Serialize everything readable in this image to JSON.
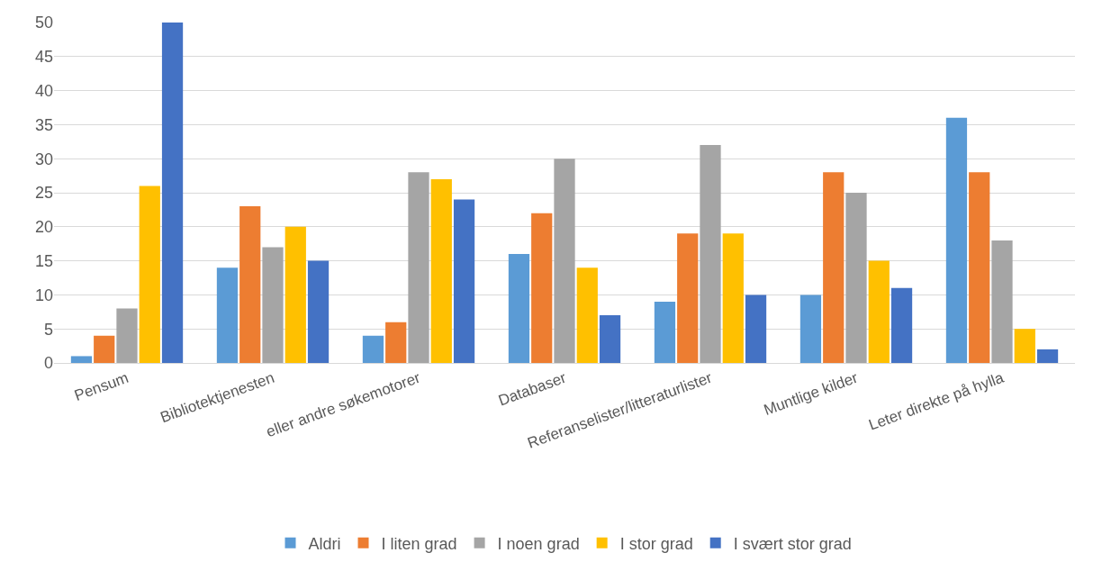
{
  "chart_data": {
    "type": "bar",
    "categories": [
      "Pensum",
      "Bibliotektjenesten",
      "eller andre søkemotorer",
      "Databaser",
      "Referanselister/litteraturlister",
      "Muntlige kilder",
      "Leter direkte på hylla"
    ],
    "series": [
      {
        "name": "Aldri",
        "color": "#5b9bd5",
        "values": [
          1,
          14,
          4,
          16,
          9,
          10,
          36
        ]
      },
      {
        "name": "I liten grad",
        "color": "#ed7d31",
        "values": [
          4,
          23,
          6,
          22,
          19,
          28,
          28
        ]
      },
      {
        "name": "I noen grad",
        "color": "#a5a5a5",
        "values": [
          8,
          17,
          28,
          30,
          32,
          25,
          18
        ]
      },
      {
        "name": "I stor grad",
        "color": "#ffc000",
        "values": [
          26,
          20,
          27,
          14,
          19,
          15,
          5
        ]
      },
      {
        "name": "I svært stor grad",
        "color": "#4472c4",
        "values": [
          50,
          15,
          24,
          7,
          10,
          11,
          2
        ]
      }
    ],
    "ylim": [
      0,
      50
    ],
    "yticks": [
      0,
      5,
      10,
      15,
      20,
      25,
      30,
      35,
      40,
      45,
      50
    ],
    "grid": "y",
    "legend": "bottom"
  }
}
